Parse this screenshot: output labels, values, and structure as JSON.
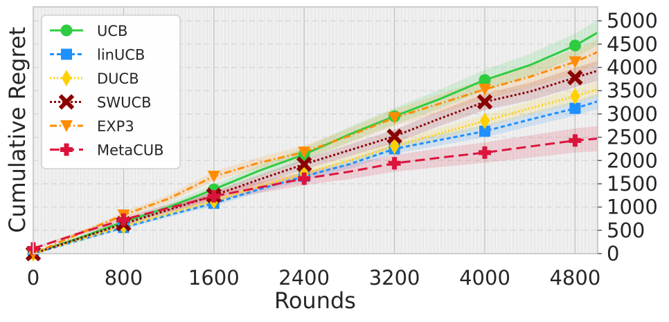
{
  "chart_data": {
    "type": "line",
    "xlabel": "Rounds",
    "ylabel": "Cumulative Regret",
    "xlim": [
      0,
      5000
    ],
    "ylim": [
      0,
      5300
    ],
    "xticks": [
      "0",
      "800",
      "1600",
      "2400",
      "3200",
      "4000",
      "4800"
    ],
    "yticks": [
      "0",
      "500",
      "1000",
      "1500",
      "2000",
      "2500",
      "3000",
      "3500",
      "4000",
      "4500",
      "5000"
    ],
    "y_axis_side": "right",
    "grid": true,
    "legend_position": "top-left",
    "series": [
      {
        "name": "UCB",
        "color": "#2ecc40",
        "dash": "solid",
        "marker": "circle",
        "band": 250,
        "x": [
          0,
          400,
          800,
          1200,
          1600,
          2000,
          2400,
          2800,
          3200,
          3600,
          4000,
          4400,
          4800,
          5000
        ],
        "y": [
          0,
          330,
          680,
          1000,
          1380,
          1780,
          2130,
          2560,
          2950,
          3320,
          3730,
          4050,
          4470,
          4750
        ]
      },
      {
        "name": "linUCB",
        "color": "#1e90ff",
        "dash": "6 4",
        "marker": "square",
        "band": 150,
        "x": [
          0,
          400,
          800,
          1200,
          1600,
          2000,
          2400,
          2800,
          3200,
          3600,
          4000,
          4400,
          4800,
          5000
        ],
        "y": [
          0,
          280,
          560,
          830,
          1080,
          1380,
          1660,
          1920,
          2250,
          2440,
          2630,
          2880,
          3120,
          3270
        ]
      },
      {
        "name": "DUCB",
        "color": "#ffd000",
        "dash": "2 3",
        "marker": "diamond",
        "band": 150,
        "x": [
          0,
          400,
          800,
          1200,
          1600,
          2000,
          2400,
          2800,
          3200,
          3600,
          4000,
          4400,
          4800,
          5000
        ],
        "y": [
          0,
          290,
          590,
          860,
          1130,
          1440,
          1720,
          2000,
          2310,
          2580,
          2850,
          3120,
          3380,
          3530
        ]
      },
      {
        "name": "SWUCB",
        "color": "#8b0000",
        "dash": "3 3",
        "marker": "x",
        "band": 200,
        "x": [
          0,
          400,
          800,
          1200,
          1600,
          2000,
          2400,
          2800,
          3200,
          3600,
          4000,
          4400,
          4800,
          5000
        ],
        "y": [
          0,
          320,
          640,
          940,
          1250,
          1590,
          1920,
          2220,
          2520,
          2900,
          3260,
          3480,
          3780,
          3930
        ]
      },
      {
        "name": "EXP3",
        "color": "#ff8c00",
        "dash": "10 4 2 4",
        "marker": "triangle-down",
        "band": 250,
        "x": [
          0,
          400,
          800,
          1200,
          1600,
          2000,
          2400,
          2800,
          3200,
          3600,
          4000,
          4400,
          4800,
          5000
        ],
        "y": [
          0,
          420,
          830,
          1180,
          1660,
          1950,
          2180,
          2530,
          2920,
          3220,
          3530,
          3800,
          4120,
          4330
        ]
      },
      {
        "name": "MetaCUB",
        "color": "#dc143c",
        "dash": "14 7",
        "marker": "plus",
        "band": 250,
        "x": [
          0,
          400,
          800,
          1200,
          1600,
          2000,
          2400,
          2800,
          3200,
          3600,
          4000,
          4400,
          4800,
          5000
        ],
        "y": [
          110,
          430,
          730,
          980,
          1230,
          1420,
          1610,
          1760,
          1940,
          2060,
          2170,
          2300,
          2430,
          2470
        ]
      }
    ]
  }
}
